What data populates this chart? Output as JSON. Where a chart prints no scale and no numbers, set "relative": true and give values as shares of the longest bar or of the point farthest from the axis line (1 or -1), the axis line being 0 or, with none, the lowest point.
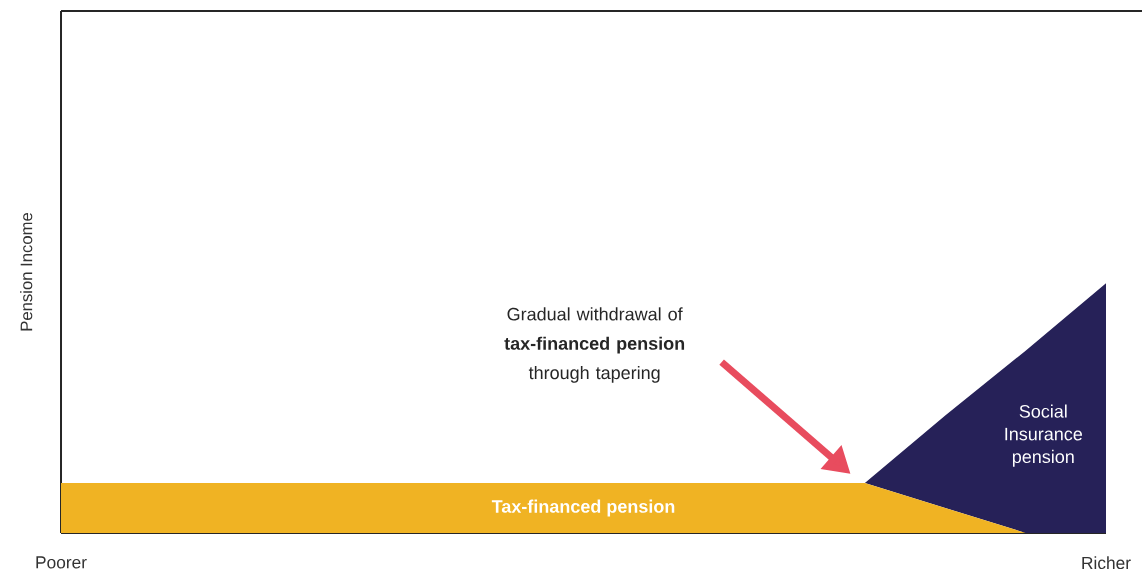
{
  "chart_data": {
    "type": "area",
    "stacked": true,
    "relative": true,
    "ylabel": "Pension Income",
    "categories": [
      "Poorer",
      null,
      null,
      null,
      null,
      null,
      null,
      null,
      null,
      null,
      null,
      null,
      null,
      "Richer"
    ],
    "series": [
      {
        "name": "Tax-financed pension",
        "color": "#f0b323",
        "values": [
          0.2,
          0.2,
          0.2,
          0.2,
          0.2,
          0.2,
          0.2,
          0.2,
          0.2,
          0.2,
          0.2,
          0.1,
          0,
          0
        ]
      },
      {
        "name": "Social Insurance pension",
        "color": "#262158",
        "values": [
          0,
          0,
          0,
          0,
          0,
          0,
          0,
          0,
          0,
          0,
          0,
          0.37,
          0.73,
          1
        ]
      }
    ],
    "annotations": [
      "Gradual withdrawal of **tax-financed pension** through tapering"
    ]
  }
}
